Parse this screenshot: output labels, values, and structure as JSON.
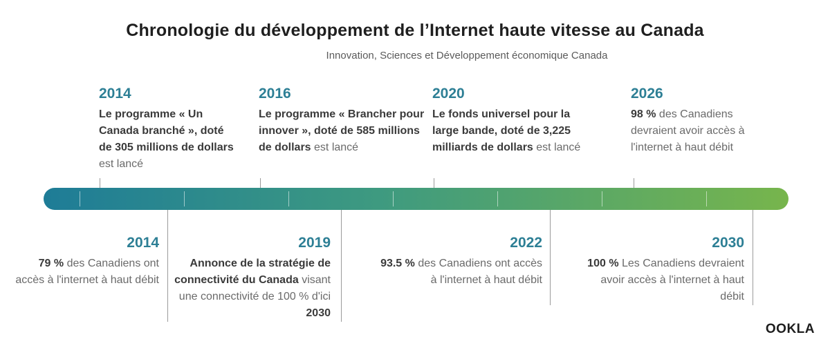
{
  "title": "Chronologie du développement de l’Internet haute vitesse au Canada",
  "subtitle": "Innovation, Sciences et Développement économique Canada",
  "top_events": [
    {
      "year": "2014",
      "bold": "Le programme « Un Canada branché », doté de 305 millions de dollars",
      "plain": " est lancé"
    },
    {
      "year": "2016",
      "bold": "Le programme « Brancher pour innover », doté de 585 millions de dollars",
      "plain": " est lancé"
    },
    {
      "year": "2020",
      "bold": "Le fonds universel pour la large bande, doté de 3,225 milliards de dollars",
      "plain": " est lancé"
    },
    {
      "year": "2026",
      "bold": "98 %",
      "plain": " des Canadiens devraient avoir accès à l'internet à haut débit"
    }
  ],
  "bottom_events": [
    {
      "year": "2014",
      "bold": "79 %",
      "plain": " des Canadiens ont accès à l'internet à haut débit"
    },
    {
      "year": "2019",
      "bold": "Annonce de la stratégie de connectivité du Canada",
      "plain": " visant une connectivité de 100 % d'ici ",
      "bold2": "2030"
    },
    {
      "year": "2022",
      "bold": "93.5 %",
      "plain": " des Canadiens ont accès à l'internet à haut débit"
    },
    {
      "year": "2030",
      "bold": "100 %",
      "plain": " Les Canadiens devraient avoir accès à l'internet à haut débit"
    }
  ],
  "logo": "OOKLA",
  "colors": {
    "year": "#2d7f95",
    "timeline_start": "#1e7c97",
    "timeline_end": "#77b54c"
  }
}
